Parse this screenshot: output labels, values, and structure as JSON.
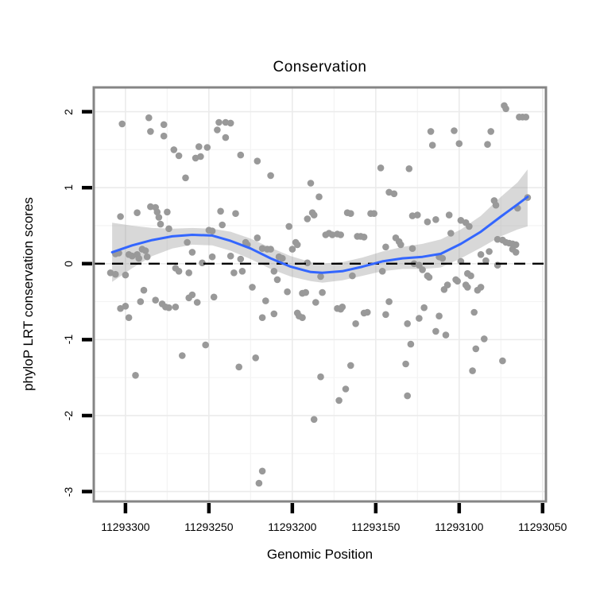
{
  "figure": {
    "background": "#ffffff"
  },
  "chart_data": {
    "type": "scatter",
    "title": "Conservation",
    "xlabel": "Genomic Position",
    "ylabel": "phyloP LRT conservation scores",
    "point_color": "#999999",
    "point_radius": 4.3,
    "grid": {
      "major_color": "#ebebeb",
      "minor_color": "#f4f4f4",
      "grid_on": true
    },
    "panel": {
      "border_color": "#858585",
      "background": "#ffffff",
      "tick_color": "#000000"
    },
    "x_axis": {
      "reversed": true,
      "lim": [
        11293319,
        11293048
      ],
      "ticks": [
        {
          "value": 11293300,
          "label": "11293300"
        },
        {
          "value": 11293250,
          "label": "11293250"
        },
        {
          "value": 11293200,
          "label": "11293200"
        },
        {
          "value": 11293150,
          "label": "11293150"
        },
        {
          "value": 11293100,
          "label": "11293100"
        },
        {
          "value": 11293050,
          "label": "11293050"
        }
      ],
      "minor_ticks": [
        11293275,
        11293225,
        11293175,
        11293125,
        11293075
      ]
    },
    "y_axis": {
      "lim": [
        -3.13,
        2.32
      ],
      "ticks": [
        {
          "value": 2,
          "label": "2"
        },
        {
          "value": 1,
          "label": "1"
        },
        {
          "value": 0,
          "label": "0"
        },
        {
          "value": -1,
          "label": "-1"
        },
        {
          "value": -2,
          "label": "-2"
        },
        {
          "value": -3,
          "label": "-3"
        }
      ],
      "minor_ticks": [
        1.5,
        0.5,
        -0.5,
        -1.5,
        -2.5
      ]
    },
    "reference_line": {
      "y": 0,
      "style": "dashed",
      "color": "#000000"
    },
    "smooth": {
      "line_color": "#3366FF",
      "band_color": "#999999",
      "band_opacity": 0.38,
      "x": [
        11293308,
        11293296,
        11293284,
        11293272,
        11293260,
        11293248,
        11293237,
        11293225,
        11293213,
        11293201,
        11293189,
        11293182,
        11293170,
        11293158,
        11293146,
        11293134,
        11293122,
        11293111,
        11293099,
        11293087,
        11293075,
        11293065,
        11293059
      ],
      "fit": [
        0.15,
        0.24,
        0.31,
        0.36,
        0.38,
        0.37,
        0.3,
        0.2,
        0.07,
        -0.04,
        -0.11,
        -0.12,
        -0.1,
        -0.04,
        0.03,
        0.07,
        0.09,
        0.13,
        0.26,
        0.42,
        0.62,
        0.78,
        0.88
      ],
      "upper": [
        0.54,
        0.5,
        0.47,
        0.46,
        0.47,
        0.46,
        0.42,
        0.33,
        0.21,
        0.1,
        0.02,
        0.0,
        0.02,
        0.08,
        0.16,
        0.22,
        0.26,
        0.32,
        0.45,
        0.63,
        0.88,
        1.07,
        1.24
      ],
      "lower": [
        -0.24,
        -0.06,
        0.1,
        0.2,
        0.25,
        0.24,
        0.17,
        0.06,
        -0.07,
        -0.17,
        -0.23,
        -0.25,
        -0.22,
        -0.16,
        -0.1,
        -0.07,
        -0.07,
        -0.05,
        0.07,
        0.21,
        0.36,
        0.45,
        0.49
      ]
    },
    "points": [
      [
        11293302,
        1.84
      ],
      [
        11293286,
        1.92
      ],
      [
        11293285,
        1.74
      ],
      [
        11293277,
        1.83
      ],
      [
        11293277,
        1.68
      ],
      [
        11293271,
        1.5
      ],
      [
        11293268,
        1.42
      ],
      [
        11293264,
        1.13
      ],
      [
        11293258,
        1.39
      ],
      [
        11293256,
        1.54
      ],
      [
        11293255,
        1.41
      ],
      [
        11293251,
        1.53
      ],
      [
        11293244,
        1.86
      ],
      [
        11293240,
        1.86
      ],
      [
        11293237,
        1.85
      ],
      [
        11293245,
        1.76
      ],
      [
        11293240,
        1.66
      ],
      [
        11293231,
        1.43
      ],
      [
        11293221,
        1.35
      ],
      [
        11293213,
        1.16
      ],
      [
        11293189,
        1.06
      ],
      [
        11293184,
        0.88
      ],
      [
        11293147,
        1.26
      ],
      [
        11293117,
        1.74
      ],
      [
        11293103,
        1.75
      ],
      [
        11293116,
        1.56
      ],
      [
        11293100,
        1.58
      ],
      [
        11293081,
        1.74
      ],
      [
        11293083,
        1.57
      ],
      [
        11293130,
        1.25
      ],
      [
        11293073,
        2.08
      ],
      [
        11293072,
        2.04
      ],
      [
        11293064,
        1.93
      ],
      [
        11293062,
        1.93
      ],
      [
        11293060,
        1.93
      ],
      [
        11293303,
        0.62
      ],
      [
        11293293,
        0.67
      ],
      [
        11293285,
        0.75
      ],
      [
        11293282,
        0.74
      ],
      [
        11293281,
        0.68
      ],
      [
        11293280,
        0.61
      ],
      [
        11293275,
        0.68
      ],
      [
        11293279,
        0.52
      ],
      [
        11293274,
        0.46
      ],
      [
        11293243,
        0.69
      ],
      [
        11293234,
        0.66
      ],
      [
        11293242,
        0.51
      ],
      [
        11293250,
        0.44
      ],
      [
        11293248,
        0.43
      ],
      [
        11293188,
        0.67
      ],
      [
        11293187,
        0.64
      ],
      [
        11293191,
        0.59
      ],
      [
        11293202,
        0.49
      ],
      [
        11293167,
        0.67
      ],
      [
        11293165,
        0.66
      ],
      [
        11293153,
        0.66
      ],
      [
        11293151,
        0.66
      ],
      [
        11293142,
        0.94
      ],
      [
        11293139,
        0.92
      ],
      [
        11293079,
        0.83
      ],
      [
        11293078,
        0.77
      ],
      [
        11293059,
        0.87
      ],
      [
        11293065,
        0.73
      ],
      [
        11293128,
        0.63
      ],
      [
        11293125,
        0.64
      ],
      [
        11293119,
        0.55
      ],
      [
        11293114,
        0.58
      ],
      [
        11293106,
        0.64
      ],
      [
        11293099,
        0.57
      ],
      [
        11293096,
        0.54
      ],
      [
        11293094,
        0.49
      ],
      [
        11293105,
        0.4
      ],
      [
        11293180,
        0.38
      ],
      [
        11293178,
        0.4
      ],
      [
        11293176,
        0.38
      ],
      [
        11293173,
        0.39
      ],
      [
        11293171,
        0.38
      ],
      [
        11293161,
        0.36
      ],
      [
        11293159,
        0.36
      ],
      [
        11293157,
        0.35
      ],
      [
        11293221,
        0.34
      ],
      [
        11293228,
        0.28
      ],
      [
        11293227,
        0.25
      ],
      [
        11293218,
        0.2
      ],
      [
        11293215,
        0.19
      ],
      [
        11293213,
        0.19
      ],
      [
        11293198,
        0.28
      ],
      [
        11293197,
        0.25
      ],
      [
        11293200,
        0.19
      ],
      [
        11293208,
        0.09
      ],
      [
        11293206,
        0.07
      ],
      [
        11293191,
        0.01
      ],
      [
        11293211,
        -0.1
      ],
      [
        11293209,
        -0.21
      ],
      [
        11293183,
        -0.17
      ],
      [
        11293164,
        -0.16
      ],
      [
        11293146,
        -0.1
      ],
      [
        11293144,
        0.22
      ],
      [
        11293224,
        -0.31
      ],
      [
        11293203,
        -0.37
      ],
      [
        11293182,
        -0.38
      ],
      [
        11293306,
        0.13
      ],
      [
        11293304,
        0.14
      ],
      [
        11293298,
        0.12
      ],
      [
        11293296,
        0.1
      ],
      [
        11293293,
        0.12
      ],
      [
        11293290,
        0.19
      ],
      [
        11293288,
        0.17
      ],
      [
        11293292,
        0.07
      ],
      [
        11293287,
        0.09
      ],
      [
        11293263,
        0.28
      ],
      [
        11293260,
        0.15
      ],
      [
        11293248,
        0.09
      ],
      [
        11293254,
        0.01
      ],
      [
        11293237,
        0.1
      ],
      [
        11293231,
        0.06
      ],
      [
        11293230,
        -0.1
      ],
      [
        11293235,
        -0.12
      ],
      [
        11293309,
        -0.12
      ],
      [
        11293306,
        -0.14
      ],
      [
        11293300,
        -0.15
      ],
      [
        11293270,
        -0.06
      ],
      [
        11293268,
        -0.1
      ],
      [
        11293262,
        -0.12
      ],
      [
        11293289,
        -0.35
      ],
      [
        11293260,
        -0.41
      ],
      [
        11293138,
        0.34
      ],
      [
        11293136,
        0.29
      ],
      [
        11293135,
        0.25
      ],
      [
        11293077,
        0.32
      ],
      [
        11293074,
        0.31
      ],
      [
        11293072,
        0.28
      ],
      [
        11293070,
        0.27
      ],
      [
        11293068,
        0.26
      ],
      [
        11293066,
        0.25
      ],
      [
        11293068,
        0.19
      ],
      [
        11293066,
        0.15
      ],
      [
        11293128,
        0.2
      ],
      [
        11293087,
        0.12
      ],
      [
        11293082,
        0.16
      ],
      [
        11293084,
        0.04
      ],
      [
        11293112,
        0.09
      ],
      [
        11293110,
        0.07
      ],
      [
        11293127,
        0.0
      ],
      [
        11293124,
        -0.02
      ],
      [
        11293122,
        -0.08
      ],
      [
        11293099,
        0.03
      ],
      [
        11293077,
        -0.02
      ],
      [
        11293119,
        -0.16
      ],
      [
        11293118,
        -0.18
      ],
      [
        11293102,
        -0.21
      ],
      [
        11293101,
        -0.23
      ],
      [
        11293095,
        -0.13
      ],
      [
        11293093,
        -0.16
      ],
      [
        11293096,
        -0.28
      ],
      [
        11293095,
        -0.31
      ],
      [
        11293109,
        -0.34
      ],
      [
        11293107,
        -0.28
      ],
      [
        11293089,
        -0.35
      ],
      [
        11293087,
        -0.31
      ],
      [
        11293303,
        -0.59
      ],
      [
        11293300,
        -0.56
      ],
      [
        11293298,
        -0.71
      ],
      [
        11293291,
        -0.5
      ],
      [
        11293282,
        -0.48
      ],
      [
        11293278,
        -0.53
      ],
      [
        11293276,
        -0.57
      ],
      [
        11293274,
        -0.58
      ],
      [
        11293270,
        -0.57
      ],
      [
        11293262,
        -0.45
      ],
      [
        11293257,
        -0.51
      ],
      [
        11293247,
        -0.44
      ],
      [
        11293216,
        -0.49
      ],
      [
        11293218,
        -0.71
      ],
      [
        11293211,
        -0.66
      ],
      [
        11293197,
        -0.65
      ],
      [
        11293196,
        -0.69
      ],
      [
        11293194,
        -0.71
      ],
      [
        11293186,
        -0.51
      ],
      [
        11293194,
        -0.39
      ],
      [
        11293192,
        -0.38
      ],
      [
        11293173,
        -0.59
      ],
      [
        11293171,
        -0.6
      ],
      [
        11293170,
        -0.57
      ],
      [
        11293162,
        -0.79
      ],
      [
        11293157,
        -0.65
      ],
      [
        11293155,
        -0.64
      ],
      [
        11293144,
        -0.67
      ],
      [
        11293142,
        -0.5
      ],
      [
        11293121,
        -0.58
      ],
      [
        11293131,
        -0.79
      ],
      [
        11293124,
        -0.72
      ],
      [
        11293112,
        -0.69
      ],
      [
        11293114,
        -0.89
      ],
      [
        11293108,
        -0.94
      ],
      [
        11293129,
        -1.06
      ],
      [
        11293091,
        -0.64
      ],
      [
        11293085,
        -0.99
      ],
      [
        11293090,
        -1.12
      ],
      [
        11293252,
        -1.07
      ],
      [
        11293266,
        -1.21
      ],
      [
        11293222,
        -1.24
      ],
      [
        11293232,
        -1.36
      ],
      [
        11293294,
        -1.47
      ],
      [
        11293165,
        -1.34
      ],
      [
        11293132,
        -1.32
      ],
      [
        11293074,
        -1.28
      ],
      [
        11293092,
        -1.41
      ],
      [
        11293183,
        -1.49
      ],
      [
        11293168,
        -1.65
      ],
      [
        11293131,
        -1.74
      ],
      [
        11293172,
        -1.8
      ],
      [
        11293187,
        -2.05
      ],
      [
        11293218,
        -2.73
      ],
      [
        11293220,
        -2.89
      ]
    ]
  }
}
